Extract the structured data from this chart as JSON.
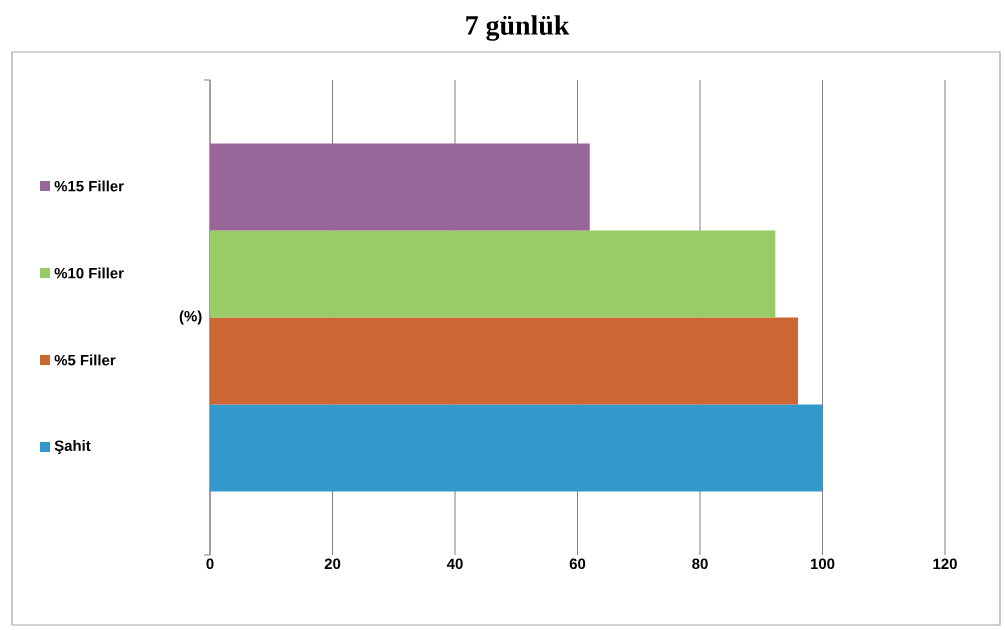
{
  "chart_data": {
    "type": "bar",
    "orientation": "horizontal",
    "title": "7 günlük",
    "categories": [
      "(%)"
    ],
    "series": [
      {
        "name": "Şahit",
        "color": "#3399cc",
        "values": [
          100
        ]
      },
      {
        "name": "%5 Filler",
        "color": "#cc6633",
        "values": [
          96
        ]
      },
      {
        "name": "%10 Filler",
        "color": "#99cc66",
        "values": [
          92.3
        ]
      },
      {
        "name": "%15 Filler",
        "color": "#996699",
        "values": [
          62
        ]
      }
    ],
    "xlim": [
      0,
      120
    ],
    "xticks": [
      0,
      20,
      40,
      60,
      80,
      100,
      120
    ],
    "grid": "x",
    "legend": "left"
  }
}
